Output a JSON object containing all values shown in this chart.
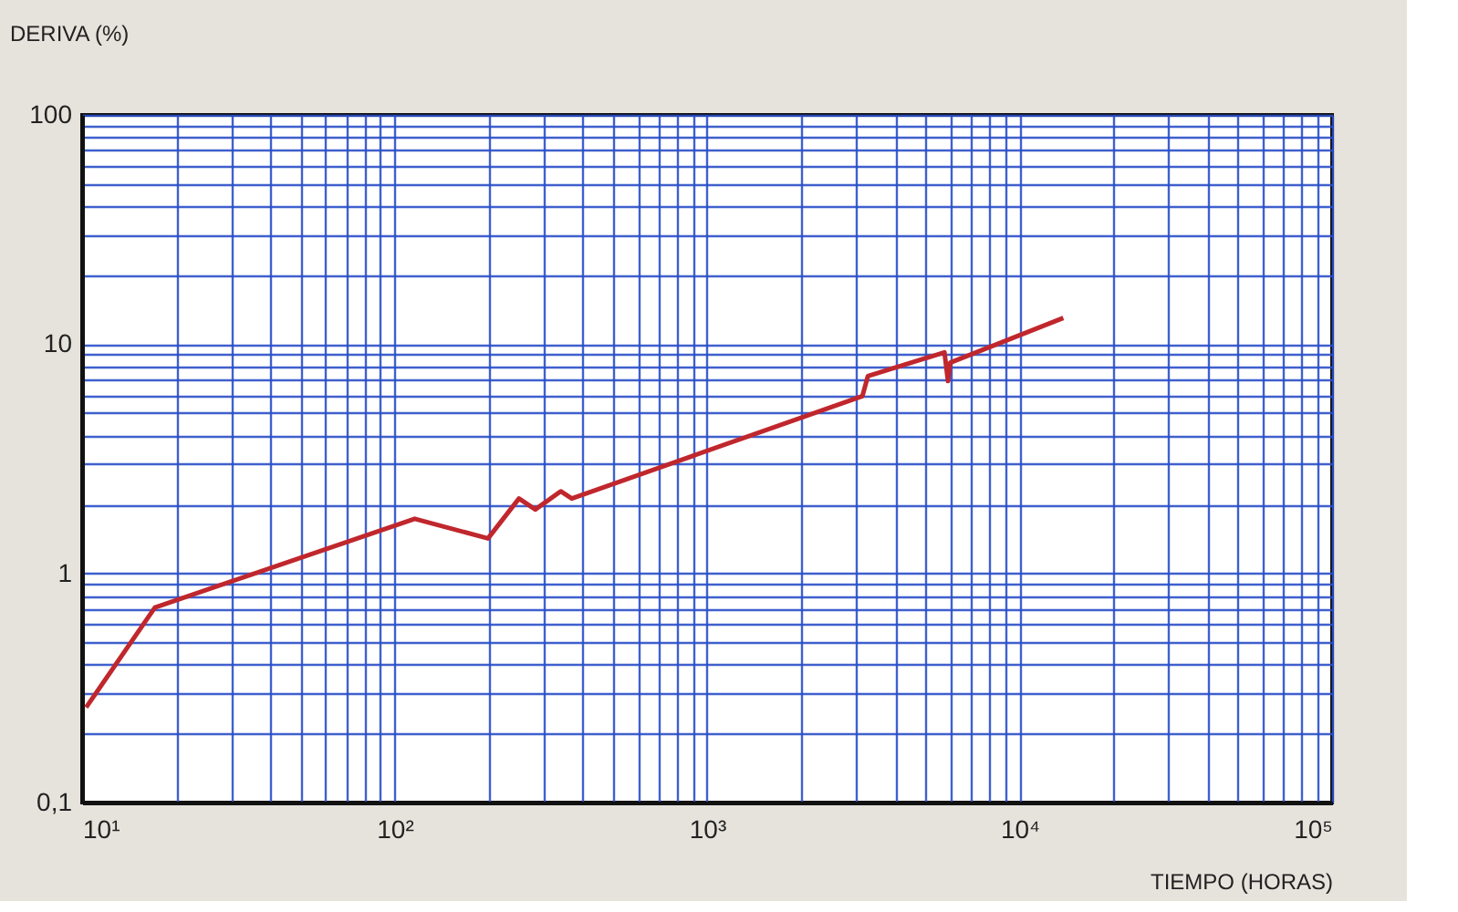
{
  "chart_data": {
    "type": "line",
    "xlabel": "TIEMPO (HORAS)",
    "ylabel": "DERIVA (%)",
    "log": "xy",
    "grid": true,
    "marker": "none",
    "line_style": "solid",
    "x": [
      10.3,
      17.1,
      116,
      199,
      250,
      282,
      340,
      369,
      3140,
      3270,
      5750,
      5900,
      6000,
      13800
    ],
    "series": [
      {
        "color": "#c0272d",
        "values": [
          0.26,
          0.71,
          1.73,
          1.42,
          2.12,
          1.9,
          2.28,
          2.12,
          5.93,
          7.26,
          9.2,
          6.9,
          8.3,
          13.0
        ]
      }
    ],
    "xlim": [
      10,
      100000
    ],
    "ylim": [
      0.1,
      100
    ],
    "xticks": [
      {
        "value": 10,
        "label": "10¹"
      },
      {
        "value": 20,
        "label": null
      },
      {
        "value": 30,
        "label": null
      },
      {
        "value": 40,
        "label": null
      },
      {
        "value": 50,
        "label": null
      },
      {
        "value": 60,
        "label": null
      },
      {
        "value": 70,
        "label": null
      },
      {
        "value": 80,
        "label": null
      },
      {
        "value": 90,
        "label": null
      },
      {
        "value": 100,
        "label": "10²"
      },
      {
        "value": 200,
        "label": null
      },
      {
        "value": 300,
        "label": null
      },
      {
        "value": 400,
        "label": null
      },
      {
        "value": 500,
        "label": null
      },
      {
        "value": 600,
        "label": null
      },
      {
        "value": 700,
        "label": null
      },
      {
        "value": 800,
        "label": null
      },
      {
        "value": 900,
        "label": null
      },
      {
        "value": 1000,
        "label": "10³"
      },
      {
        "value": 2000,
        "label": null
      },
      {
        "value": 3000,
        "label": null
      },
      {
        "value": 4000,
        "label": null
      },
      {
        "value": 5000,
        "label": null
      },
      {
        "value": 6000,
        "label": null
      },
      {
        "value": 7000,
        "label": null
      },
      {
        "value": 8000,
        "label": null
      },
      {
        "value": 9000,
        "label": null
      },
      {
        "value": 10000,
        "label": "10⁴"
      },
      {
        "value": 20000,
        "label": null
      },
      {
        "value": 30000,
        "label": null
      },
      {
        "value": 40000,
        "label": null
      },
      {
        "value": 50000,
        "label": null
      },
      {
        "value": 60000,
        "label": null
      },
      {
        "value": 70000,
        "label": null
      },
      {
        "value": 80000,
        "label": null
      },
      {
        "value": 90000,
        "label": null
      },
      {
        "value": 100000,
        "label": "10⁵"
      }
    ],
    "yticks": [
      {
        "value": 0.1,
        "label": "0,1"
      },
      {
        "value": 0.2,
        "label": null
      },
      {
        "value": 0.3,
        "label": null
      },
      {
        "value": 0.4,
        "label": null
      },
      {
        "value": 0.5,
        "label": null
      },
      {
        "value": 0.6,
        "label": null
      },
      {
        "value": 0.7,
        "label": null
      },
      {
        "value": 0.8,
        "label": null
      },
      {
        "value": 0.9,
        "label": null
      },
      1,
      {
        "value": 2,
        "label": null
      },
      {
        "value": 3,
        "label": null
      },
      {
        "value": 4,
        "label": null
      },
      {
        "value": 5,
        "label": null
      },
      {
        "value": 6,
        "label": null
      },
      {
        "value": 7,
        "label": null
      },
      {
        "value": 8,
        "label": null
      },
      {
        "value": 9,
        "label": null
      },
      10,
      {
        "value": 20,
        "label": null
      },
      {
        "value": 30,
        "label": null
      },
      {
        "value": 40,
        "label": null
      },
      {
        "value": 50,
        "label": null
      },
      {
        "value": 60,
        "label": null
      },
      {
        "value": 70,
        "label": null
      },
      {
        "value": 80,
        "label": null
      },
      {
        "value": 90,
        "label": null
      },
      100
    ]
  }
}
